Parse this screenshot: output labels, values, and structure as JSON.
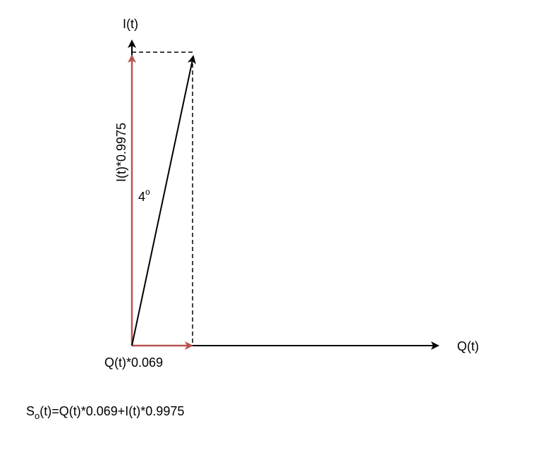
{
  "diagram": {
    "axes": {
      "i_axis_label": "I(t)",
      "q_axis_label": "Q(t)"
    },
    "components": {
      "i_component_label": "I(t)*0.9975",
      "q_component_label": "Q(t)*0.069"
    },
    "angle": {
      "value": "4",
      "unit_symbol": "o"
    },
    "formula": {
      "prefix": "S",
      "subscript": "o",
      "rest": "(t)=Q(t)*0.069+I(t)*0.9975"
    },
    "colors": {
      "axis": "#000000",
      "component": "#b85450",
      "guide": "#000000"
    }
  }
}
